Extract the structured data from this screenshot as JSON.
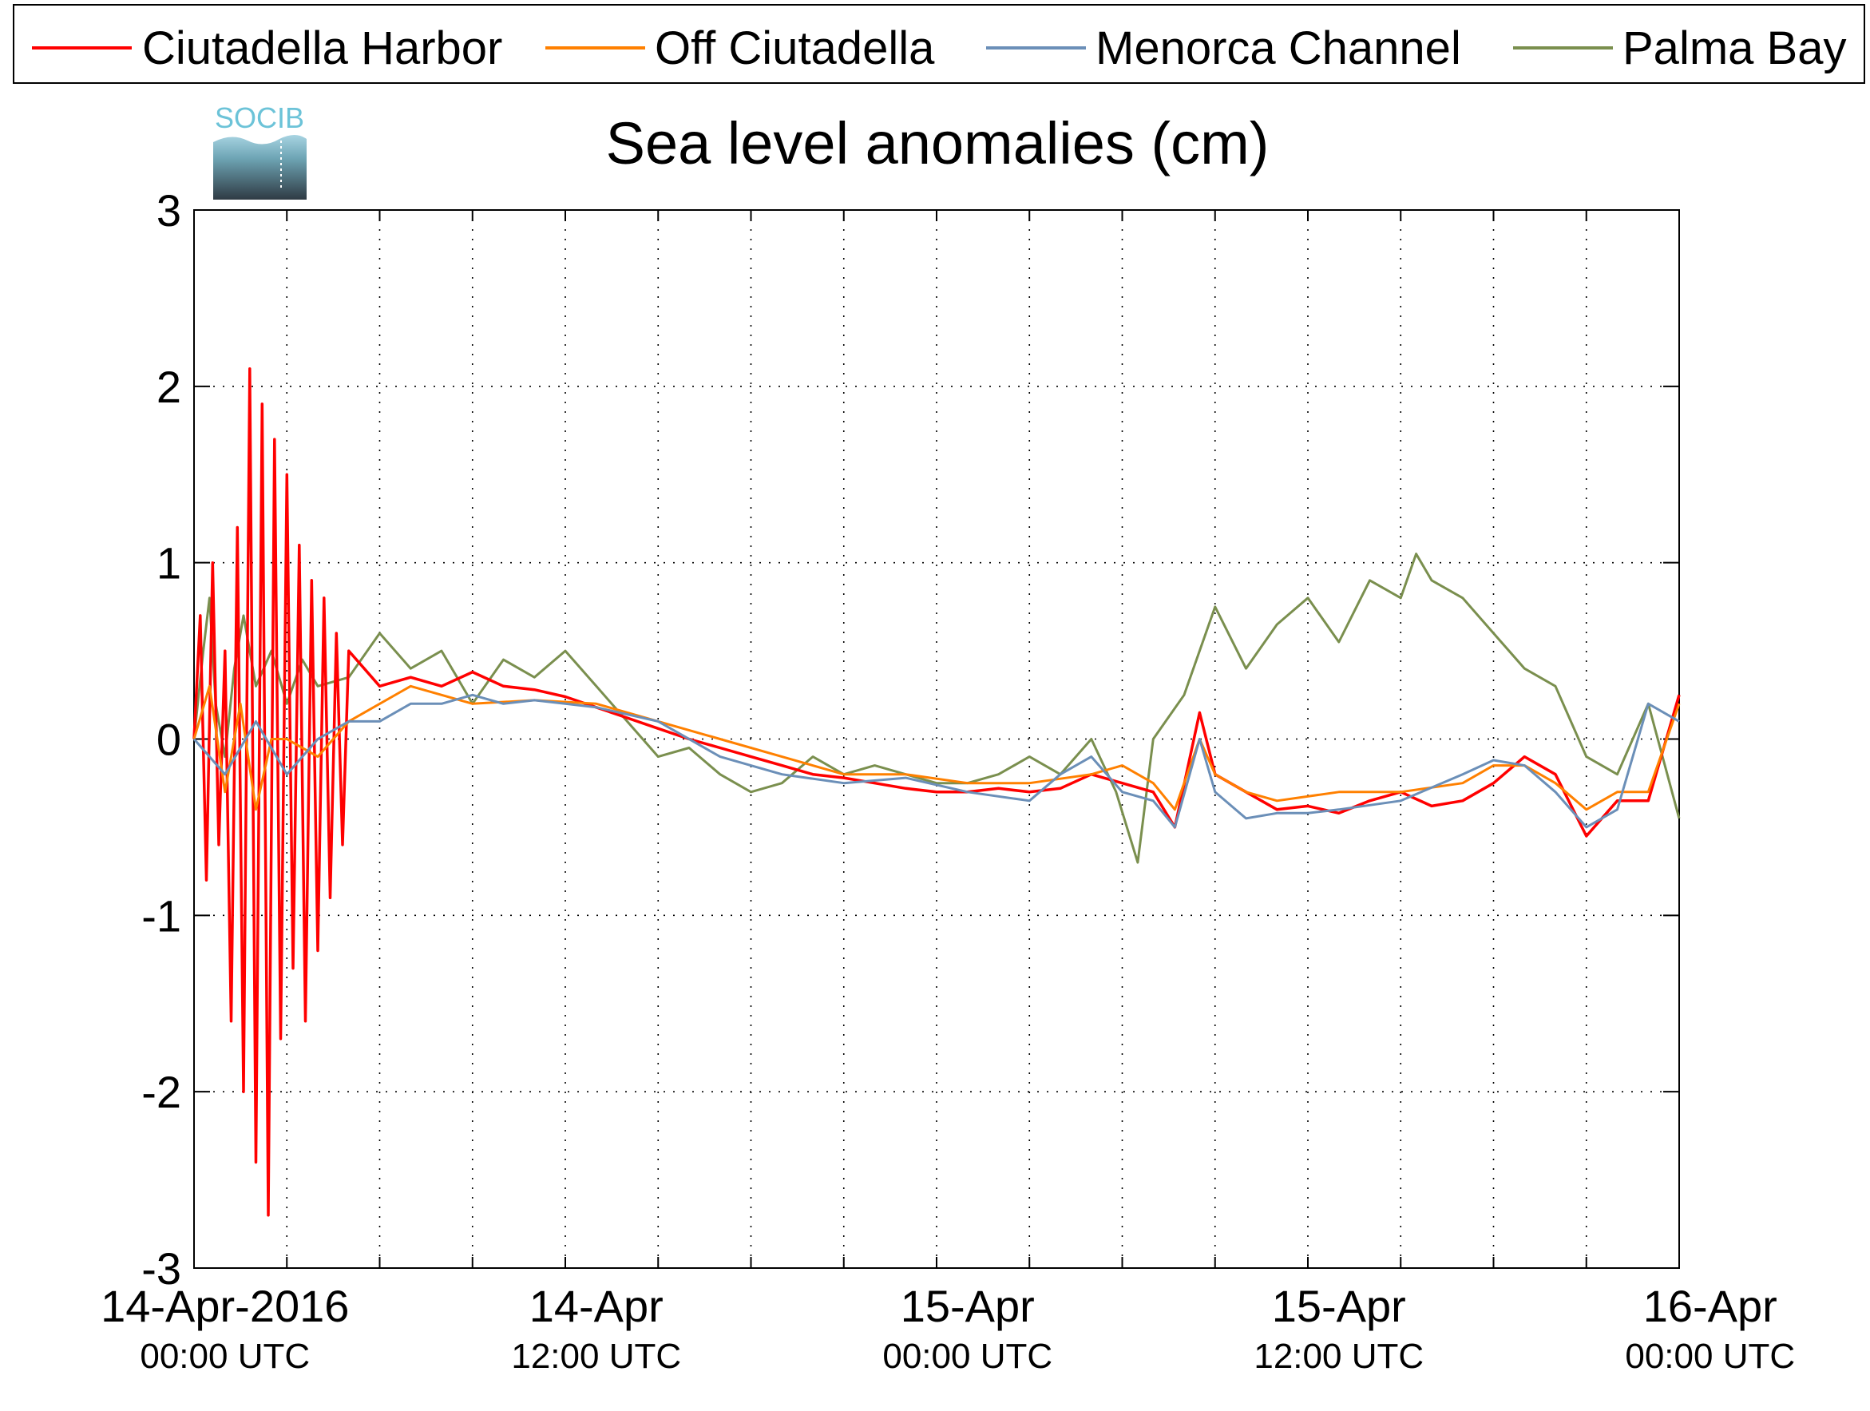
{
  "logo_text": "SOCIB",
  "chart_data": {
    "type": "line",
    "title": "Sea level anomalies (cm)",
    "xlabel": "",
    "ylabel": "",
    "ylim": [
      -3,
      3
    ],
    "xlim_hours": [
      -1,
      47
    ],
    "y_ticks": [
      3,
      2,
      1,
      0,
      -1,
      -2,
      -3
    ],
    "y_tick_labels": [
      "3",
      "2",
      "1",
      "0",
      "-1",
      "-2",
      "-3"
    ],
    "x_tick_labels": [
      {
        "hour": 0,
        "date": "14-Apr-2016",
        "time": "00:00 UTC"
      },
      {
        "hour": 12,
        "date": "14-Apr",
        "time": "12:00 UTC"
      },
      {
        "hour": 24,
        "date": "15-Apr",
        "time": "00:00 UTC"
      },
      {
        "hour": 36,
        "date": "15-Apr",
        "time": "12:00 UTC"
      },
      {
        "hour": 48,
        "date": "16-Apr",
        "time": "00:00 UTC"
      }
    ],
    "grid": true,
    "legend_position": "top",
    "series": [
      {
        "name": "Ciutadella Harbor",
        "color": "#ff0000",
        "x": [
          -1.0,
          -0.8,
          -0.6,
          -0.4,
          -0.2,
          0.0,
          0.2,
          0.4,
          0.6,
          0.8,
          1.0,
          1.2,
          1.4,
          1.6,
          1.8,
          2.0,
          2.2,
          2.4,
          2.6,
          2.8,
          3.0,
          3.2,
          3.4,
          3.6,
          3.8,
          4.0,
          5.0,
          6.0,
          7.0,
          8.0,
          9.0,
          10.0,
          11.0,
          12.0,
          13.0,
          14.0,
          15.0,
          16.0,
          17.0,
          18.0,
          19.0,
          20.0,
          21.0,
          22.0,
          23.0,
          24.0,
          25.0,
          26.0,
          27.0,
          28.0,
          29.0,
          30.0,
          30.7,
          31.5,
          32.0,
          33.0,
          34.0,
          35.0,
          36.0,
          37.0,
          38.0,
          39.0,
          40.0,
          41.0,
          42.0,
          43.0,
          44.0,
          45.0,
          46.0,
          47.0
        ],
        "y": [
          0.0,
          0.7,
          -0.8,
          1.0,
          -0.6,
          0.5,
          -1.6,
          1.2,
          -2.0,
          2.1,
          -2.4,
          1.9,
          -2.7,
          1.7,
          -1.7,
          1.5,
          -1.3,
          1.1,
          -1.6,
          0.9,
          -1.2,
          0.8,
          -0.9,
          0.6,
          -0.6,
          0.5,
          0.3,
          0.35,
          0.3,
          0.38,
          0.3,
          0.28,
          0.24,
          0.18,
          0.12,
          0.06,
          0.0,
          -0.05,
          -0.1,
          -0.15,
          -0.2,
          -0.22,
          -0.25,
          -0.28,
          -0.3,
          -0.3,
          -0.28,
          -0.3,
          -0.28,
          -0.2,
          -0.25,
          -0.3,
          -0.5,
          0.15,
          -0.2,
          -0.3,
          -0.4,
          -0.38,
          -0.42,
          -0.35,
          -0.3,
          -0.38,
          -0.35,
          -0.25,
          -0.1,
          -0.2,
          -0.55,
          -0.35,
          -0.35,
          0.25
        ]
      },
      {
        "name": "Off Ciutadella",
        "color": "#ff8000",
        "x": [
          -1.0,
          -0.5,
          0.0,
          0.5,
          1.0,
          1.5,
          2.0,
          3.0,
          4.0,
          6.0,
          8.0,
          10.0,
          12.0,
          14.0,
          16.0,
          18.0,
          20.0,
          22.0,
          24.0,
          26.0,
          28.0,
          29.0,
          30.0,
          30.7,
          31.5,
          32.0,
          33.0,
          34.0,
          36.0,
          38.0,
          40.0,
          41.0,
          42.0,
          43.0,
          44.0,
          45.0,
          46.0,
          47.0
        ],
        "y": [
          0.0,
          0.3,
          -0.3,
          0.2,
          -0.4,
          0.0,
          0.0,
          -0.1,
          0.1,
          0.3,
          0.2,
          0.22,
          0.2,
          0.1,
          0.0,
          -0.1,
          -0.2,
          -0.2,
          -0.25,
          -0.25,
          -0.2,
          -0.15,
          -0.25,
          -0.4,
          0.0,
          -0.2,
          -0.3,
          -0.35,
          -0.3,
          -0.3,
          -0.25,
          -0.15,
          -0.15,
          -0.25,
          -0.4,
          -0.3,
          -0.3,
          0.2
        ]
      },
      {
        "name": "Menorca Channel",
        "color": "#6b8fb8",
        "x": [
          -1.0,
          0.0,
          1.0,
          2.0,
          3.0,
          4.0,
          5.0,
          6.0,
          7.0,
          8.0,
          9.0,
          10.0,
          11.0,
          12.0,
          14.0,
          16.0,
          18.0,
          20.0,
          22.0,
          24.0,
          26.0,
          27.0,
          28.0,
          29.0,
          30.0,
          30.7,
          31.5,
          32.0,
          33.0,
          34.0,
          35.0,
          36.0,
          38.0,
          40.0,
          41.0,
          42.0,
          43.0,
          44.0,
          45.0,
          46.0,
          47.0
        ],
        "y": [
          0.0,
          -0.2,
          0.1,
          -0.2,
          0.0,
          0.1,
          0.1,
          0.2,
          0.2,
          0.25,
          0.2,
          0.22,
          0.2,
          0.18,
          0.1,
          -0.1,
          -0.2,
          -0.25,
          -0.22,
          -0.3,
          -0.35,
          -0.2,
          -0.1,
          -0.3,
          -0.35,
          -0.5,
          0.0,
          -0.3,
          -0.45,
          -0.42,
          -0.42,
          -0.4,
          -0.35,
          -0.2,
          -0.12,
          -0.15,
          -0.3,
          -0.5,
          -0.4,
          0.2,
          0.1
        ]
      },
      {
        "name": "Palma Bay",
        "color": "#7a8f4e",
        "x": [
          -1.0,
          -0.7,
          -0.5,
          -0.3,
          0.0,
          0.3,
          0.6,
          1.0,
          1.5,
          2.0,
          2.5,
          3.0,
          4.0,
          5.0,
          6.0,
          7.0,
          8.0,
          9.0,
          10.0,
          11.0,
          12.0,
          13.0,
          14.0,
          15.0,
          16.0,
          17.0,
          18.0,
          19.0,
          20.0,
          21.0,
          22.0,
          23.0,
          24.0,
          25.0,
          26.0,
          27.0,
          28.0,
          28.8,
          29.5,
          30.0,
          31.0,
          32.0,
          33.0,
          34.0,
          35.0,
          36.0,
          37.0,
          38.0,
          38.5,
          39.0,
          40.0,
          41.0,
          42.0,
          43.0,
          44.0,
          45.0,
          46.0,
          47.0
        ],
        "y": [
          0.0,
          0.5,
          0.8,
          0.2,
          -0.1,
          0.4,
          0.7,
          0.3,
          0.5,
          0.2,
          0.45,
          0.3,
          0.35,
          0.6,
          0.4,
          0.5,
          0.2,
          0.45,
          0.35,
          0.5,
          0.3,
          0.1,
          -0.1,
          -0.05,
          -0.2,
          -0.3,
          -0.25,
          -0.1,
          -0.2,
          -0.15,
          -0.2,
          -0.25,
          -0.25,
          -0.2,
          -0.1,
          -0.2,
          0.0,
          -0.3,
          -0.7,
          0.0,
          0.25,
          0.75,
          0.4,
          0.65,
          0.8,
          0.55,
          0.9,
          0.8,
          1.05,
          0.9,
          0.8,
          0.6,
          0.4,
          0.3,
          -0.1,
          -0.2,
          0.2,
          -0.45
        ]
      }
    ]
  }
}
